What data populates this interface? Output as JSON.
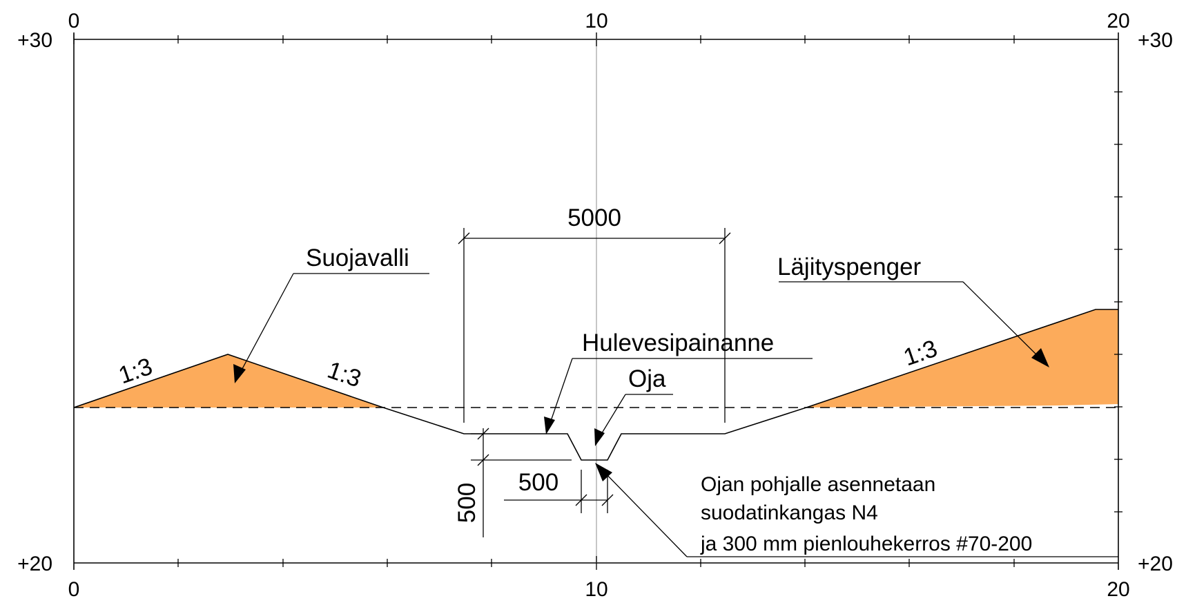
{
  "axes": {
    "x_top": [
      "0",
      "10",
      "20"
    ],
    "x_bottom": [
      "0",
      "10",
      "20"
    ],
    "y_left": [
      "+30",
      "+20"
    ],
    "y_right": [
      "+30",
      "+20"
    ]
  },
  "labels": {
    "suojavalli": "Suojavalli",
    "lajityspenger": "Läjityspenger",
    "hulevesipainanne": "Hulevesipainanne",
    "oja": "Oja"
  },
  "slopes": {
    "left_up": "1:3",
    "left_down": "1:3",
    "right_up": "1:3"
  },
  "dimensions": {
    "width_total": "5000",
    "ditch_bottom": "500",
    "ditch_depth": "500"
  },
  "note": {
    "line1": "Ojan pohjalle asennetaan",
    "line2": "suodatinkangas N4",
    "line3": "ja 300 mm pienlouhekerros #70-200"
  },
  "colors": {
    "fill": "#FCAB5B",
    "line": "#000000",
    "centerline": "#b8b8b8"
  }
}
